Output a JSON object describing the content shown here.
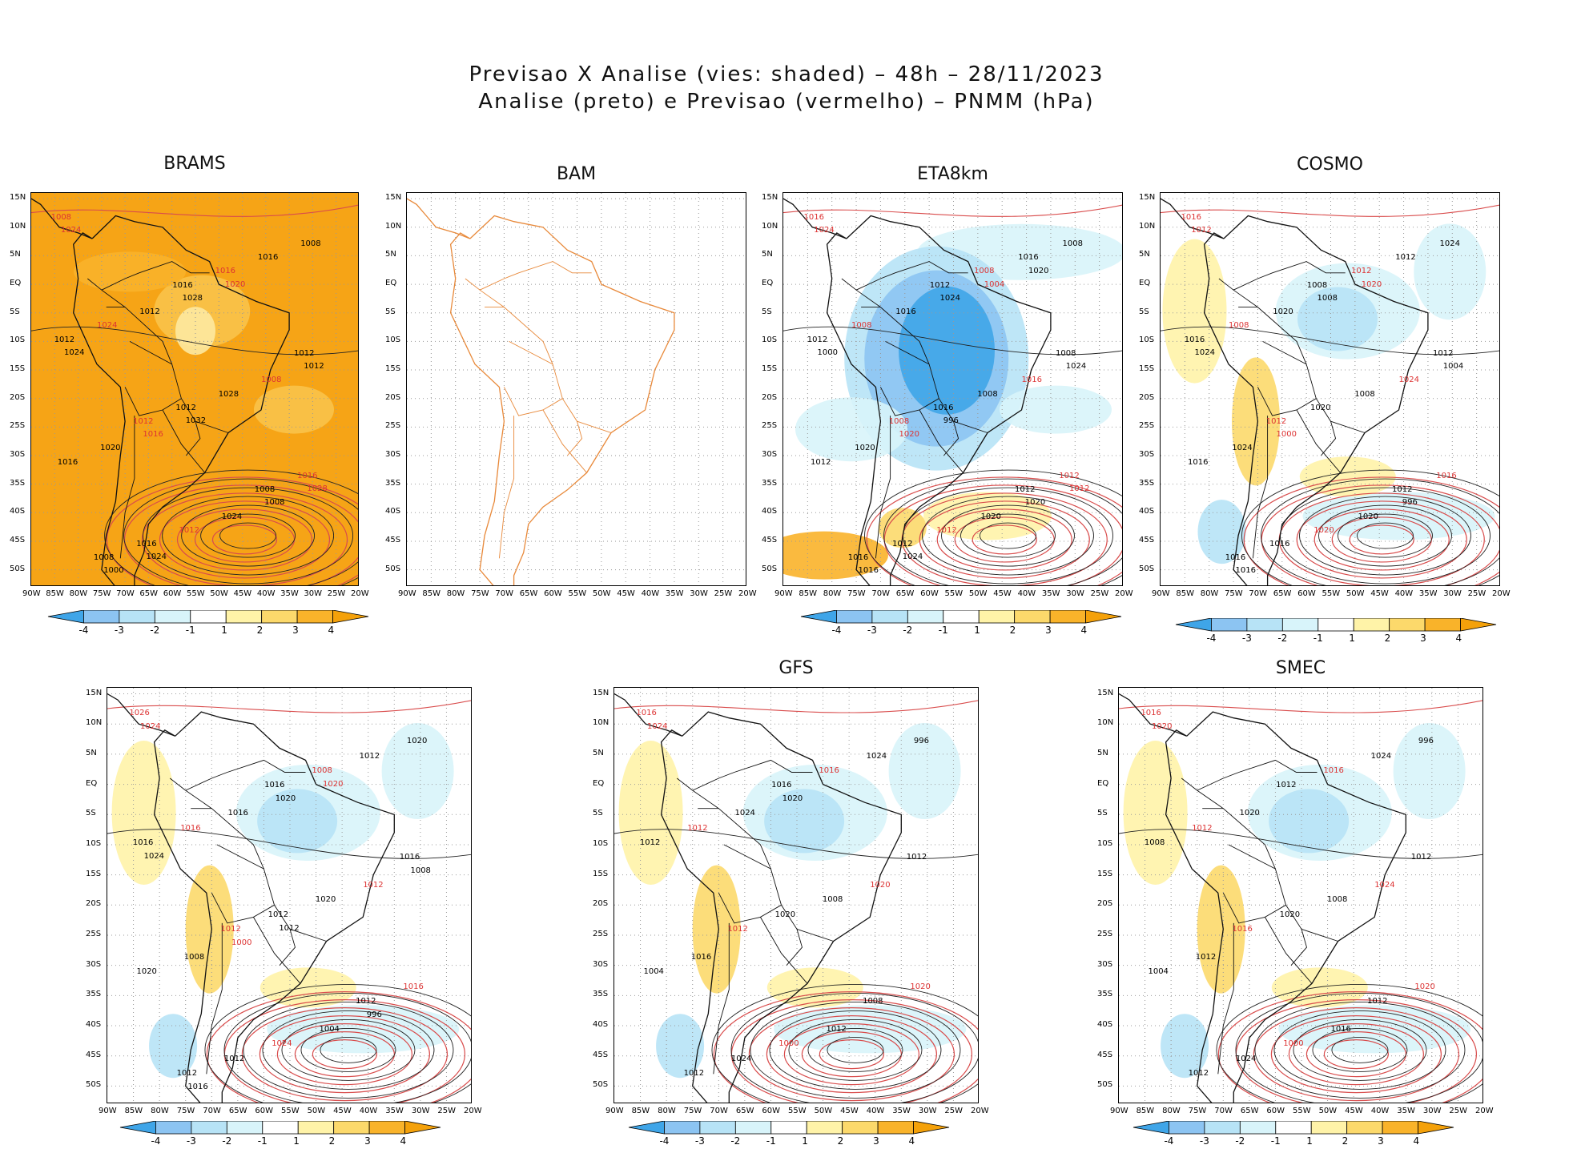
{
  "title": {
    "line1": "Previsao X Analise (vies: shaded) – 48h – 28/11/2023",
    "line2": "Analise (preto) e Previsao (vermelho) – PNMM (hPa)"
  },
  "axes": {
    "lon_labels": [
      "90W",
      "85W",
      "80W",
      "75W",
      "70W",
      "65W",
      "60W",
      "55W",
      "50W",
      "45W",
      "40W",
      "35W",
      "30W",
      "25W",
      "20W"
    ],
    "lat_labels": [
      "15N",
      "10N",
      "5N",
      "EQ",
      "5S",
      "10S",
      "15S",
      "20S",
      "25S",
      "30S",
      "35S",
      "40S",
      "45S",
      "50S"
    ]
  },
  "colorbar": {
    "ticks": [
      "-4",
      "-3",
      "-2",
      "-1",
      "1",
      "2",
      "3",
      "4"
    ],
    "colors": [
      "#3fa5e8",
      "#8cc4f2",
      "#b7e3f6",
      "#d8f4fa",
      "#ffffff",
      "#fff3a8",
      "#fcd96b",
      "#f9b32a",
      "#f4a10a"
    ]
  },
  "panels": [
    {
      "name": "BRAMS",
      "theme": "warm",
      "has_colorbar": true
    },
    {
      "name": "BAM",
      "theme": "empty",
      "has_colorbar": false
    },
    {
      "name": "ETA8km",
      "theme": "cool",
      "has_colorbar": true
    },
    {
      "name": "COSMO",
      "theme": "mixed",
      "has_colorbar": true
    },
    {
      "name": "",
      "theme": "mixed",
      "has_colorbar": true
    },
    {
      "name": "GFS",
      "theme": "mixed",
      "has_colorbar": true
    },
    {
      "name": "SMEC",
      "theme": "mixed",
      "has_colorbar": true
    }
  ],
  "isobars": {
    "BRAMS": [
      "1008",
      "1016",
      "1012",
      "1012",
      "1008",
      "1008",
      "1016",
      "1012",
      "1012",
      "1016",
      "1016",
      "1016",
      "1024",
      "1028",
      "1016",
      "1012",
      "1008",
      "1012",
      "1008",
      "1020",
      "1024",
      "1024",
      "1028",
      "1012",
      "1016",
      "1008",
      "1000",
      "1020",
      "1024",
      "1032",
      "1028",
      "1024"
    ],
    "ETA8km": [
      "1016",
      "1012",
      "1008",
      "1008",
      "1012",
      "1016",
      "1008",
      "1012",
      "1016",
      "1012",
      "1012",
      "1016",
      "1008",
      "1008",
      "1012",
      "1012",
      "1008",
      "1016",
      "1016",
      "1020",
      "1020",
      "1024",
      "1024",
      "1024",
      "1020",
      "1020",
      "1016",
      "1004",
      "1000",
      "996",
      "1012",
      "1024",
      "1020"
    ],
    "COSMO": [
      "1016",
      "1008",
      "1012",
      "1012",
      "1012",
      "1016",
      "1012",
      "1016",
      "1020",
      "1016",
      "1016",
      "1012",
      "1008",
      "1008",
      "1016",
      "1020",
      "1024",
      "1020",
      "1024",
      "1024",
      "1020",
      "1012",
      "1008",
      "1004",
      "1000",
      "996",
      "1016",
      "1020",
      "1024"
    ],
    "P5": [
      "1026",
      "1016",
      "1016",
      "1012",
      "1012",
      "1012",
      "1008",
      "1016",
      "1012",
      "1016",
      "1012",
      "1012",
      "1016",
      "1020",
      "1020",
      "1024",
      "1020",
      "1016",
      "1012",
      "1008",
      "1004",
      "1024",
      "1020",
      "1008",
      "1000",
      "996",
      "1016",
      "1020",
      "1024",
      "1012"
    ],
    "GFS": [
      "1016",
      "1016",
      "1012",
      "1012",
      "1008",
      "1012",
      "1016",
      "1012",
      "1020",
      "1020",
      "1024",
      "1024",
      "1012",
      "1008",
      "1004",
      "1000",
      "996",
      "1024",
      "1020",
      "1016",
      "1012",
      "1024",
      "1020"
    ],
    "SMEC": [
      "1016",
      "1012",
      "1012",
      "1016",
      "1012",
      "1012",
      "1016",
      "1008",
      "1020",
      "1020",
      "1024",
      "1024",
      "1012",
      "1008",
      "1004",
      "1000",
      "996",
      "1020",
      "1024",
      "1012",
      "1016",
      "1020"
    ]
  }
}
